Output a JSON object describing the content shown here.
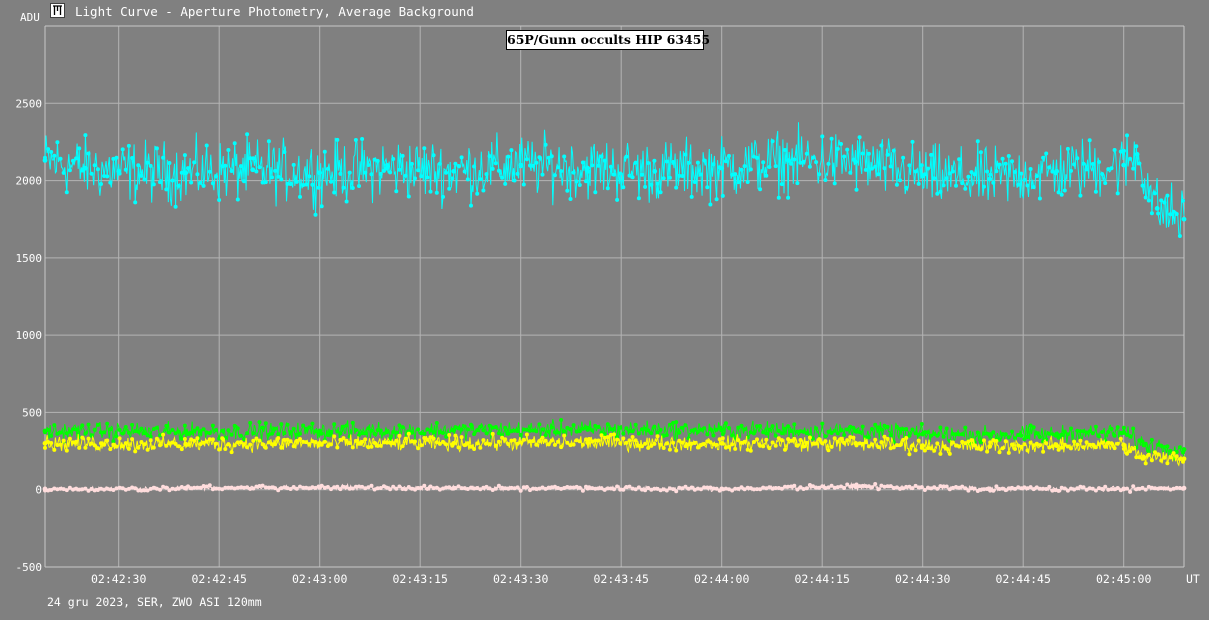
{
  "window": {
    "title": "Light Curve - Aperture Photometry, Average Background",
    "icon": "light-curve-app-icon"
  },
  "footer": {
    "observation_info": "24 gru 2023, SER, ZWO ASI 120mm"
  },
  "chart_data": {
    "type": "line",
    "title": "65P/Gunn occults HIP 63455",
    "ylabel": "ADU",
    "xlabel": "UT",
    "ylim": [
      -500,
      3000
    ],
    "yticks": [
      -500,
      0,
      500,
      1000,
      1500,
      2000,
      2500
    ],
    "xlim": [
      "02:42:19",
      "02:45:09"
    ],
    "xticks": [
      "02:42:30",
      "02:42:45",
      "02:43:00",
      "02:43:15",
      "02:43:30",
      "02:43:45",
      "02:44:00",
      "02:44:15",
      "02:44:30",
      "02:44:45",
      "02:45:00"
    ],
    "grid": true,
    "background_color": "#808080",
    "series": [
      {
        "color": "#00ffff",
        "markers": true,
        "x": [
          "02:42:19",
          "02:42:25",
          "02:42:30",
          "02:42:40",
          "02:42:50",
          "02:43:00",
          "02:43:10",
          "02:43:20",
          "02:43:30",
          "02:43:40",
          "02:43:50",
          "02:44:00",
          "02:44:10",
          "02:44:20",
          "02:44:30",
          "02:44:40",
          "02:44:50",
          "02:45:00",
          "02:45:02",
          "02:45:05",
          "02:45:09"
        ],
        "values": [
          2130,
          2080,
          2060,
          2050,
          2070,
          2050,
          2080,
          2060,
          2100,
          2080,
          2060,
          2080,
          2130,
          2120,
          2030,
          2010,
          2060,
          2100,
          2170,
          1820,
          1750
        ]
      },
      {
        "color": "#00ff00",
        "markers": true,
        "x": [
          "02:42:19",
          "02:42:40",
          "02:43:00",
          "02:43:20",
          "02:43:40",
          "02:44:00",
          "02:44:20",
          "02:44:30",
          "02:44:40",
          "02:44:50",
          "02:45:00",
          "02:45:03",
          "02:45:09"
        ],
        "values": [
          380,
          375,
          380,
          385,
          390,
          385,
          380,
          360,
          355,
          360,
          370,
          290,
          260
        ]
      },
      {
        "color": "#ffff00",
        "markers": true,
        "x": [
          "02:42:19",
          "02:42:40",
          "02:43:00",
          "02:43:20",
          "02:43:40",
          "02:44:00",
          "02:44:20",
          "02:44:30",
          "02:44:40",
          "02:44:50",
          "02:45:00",
          "02:45:03",
          "02:45:09"
        ],
        "values": [
          300,
          295,
          300,
          300,
          305,
          300,
          300,
          285,
          280,
          285,
          290,
          210,
          200
        ]
      },
      {
        "color": "#ffdddd",
        "markers": true,
        "x": [
          "02:42:19",
          "02:42:40",
          "02:43:00",
          "02:43:20",
          "02:43:40",
          "02:44:00",
          "02:44:20",
          "02:44:40",
          "02:45:00",
          "02:45:09"
        ],
        "values": [
          5,
          10,
          15,
          10,
          10,
          5,
          20,
          5,
          5,
          10
        ]
      }
    ]
  }
}
